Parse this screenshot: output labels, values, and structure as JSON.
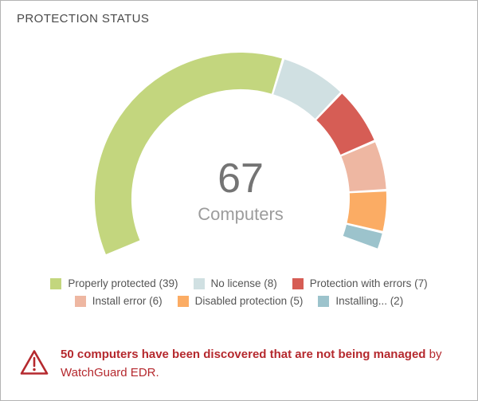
{
  "chart_data": {
    "type": "pie",
    "subtype": "gauge-donut",
    "title": "PROTECTION STATUS",
    "total": 67,
    "start_angle_deg": 202.5,
    "end_angle_deg": -20,
    "legend_position": "bottom",
    "series": [
      {
        "name": "Properly protected",
        "value": 39,
        "color": "#c3d67e"
      },
      {
        "name": "No license",
        "value": 8,
        "color": "#d0e0e2"
      },
      {
        "name": "Protection with errors",
        "value": 7,
        "color": "#d65d55"
      },
      {
        "name": "Install error",
        "value": 6,
        "color": "#eeb7a2"
      },
      {
        "name": "Disabled protection",
        "value": 5,
        "color": "#fbac64"
      },
      {
        "name": "Installing...",
        "value": 2,
        "color": "#9cc3cc"
      }
    ],
    "legend_rows": [
      [
        0,
        1,
        2
      ],
      [
        3,
        4,
        5
      ]
    ],
    "legend_labels": [
      "Properly protected (39)",
      "No license (8)",
      "Protection with errors (7)",
      "Install error (6)",
      "Disabled protection (5)",
      "Installing... (2)"
    ]
  },
  "gauge": {
    "center_value": "67",
    "center_label": "Computers"
  },
  "warning": {
    "bold_text": "50 computers have been discovered that are not being managed",
    "regular_text": " by WatchGuard EDR.",
    "color": "#b5292e"
  },
  "colors": {
    "card_border": "#b4b4b4",
    "title_text": "#4a4a4a",
    "center_value_text": "#747474",
    "center_label_text": "#9c9c9c",
    "legend_text": "#555555"
  }
}
